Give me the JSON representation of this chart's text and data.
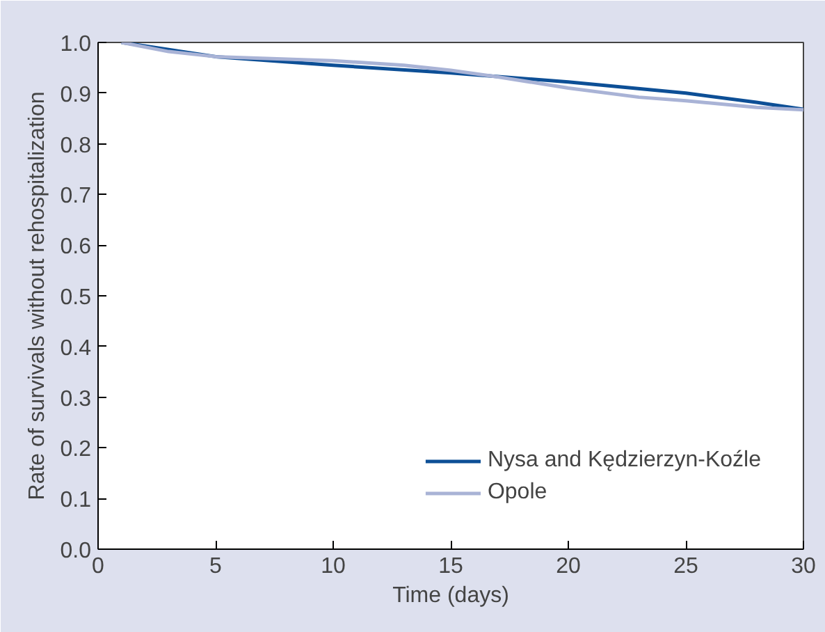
{
  "chart_data": {
    "type": "line",
    "xlabel": "Time (days)",
    "ylabel": "Rate of survivals without rehospitalization",
    "xlim": [
      0,
      30
    ],
    "ylim": [
      0,
      1
    ],
    "xticks": [
      0,
      5,
      10,
      15,
      20,
      25,
      30
    ],
    "yticks": [
      {
        "value": 0,
        "label": "0.0"
      },
      {
        "value": 0.1,
        "label": "0.1"
      },
      {
        "value": 0.2,
        "label": "0.2"
      },
      {
        "value": 0.3,
        "label": "0.3"
      },
      {
        "value": 0.4,
        "label": "0.4"
      },
      {
        "value": 0.5,
        "label": "0.5"
      },
      {
        "value": 0.6,
        "label": "0.6"
      },
      {
        "value": 0.7,
        "label": "0.7"
      },
      {
        "value": 0.8,
        "label": "0.8"
      },
      {
        "value": 0.9,
        "label": "0.9"
      },
      {
        "value": 1,
        "label": "1.0"
      }
    ],
    "grid": false,
    "legend": "bottom right",
    "line_style": "solid",
    "series": [
      {
        "name": "Nysa and Kędzierzyn-Koźle",
        "color": "#0d4f96",
        "x": [
          1,
          5,
          10,
          15,
          20,
          25,
          28,
          30
        ],
        "values": [
          1.0,
          0.972,
          0.955,
          0.94,
          0.922,
          0.9,
          0.882,
          0.868
        ]
      },
      {
        "name": "Opole",
        "color": "#a9b3d6",
        "x": [
          1,
          3,
          5,
          10,
          13,
          15,
          17,
          20,
          23,
          25,
          28,
          30
        ],
        "values": [
          1.0,
          0.982,
          0.972,
          0.964,
          0.955,
          0.945,
          0.932,
          0.91,
          0.892,
          0.885,
          0.872,
          0.867
        ]
      }
    ]
  }
}
